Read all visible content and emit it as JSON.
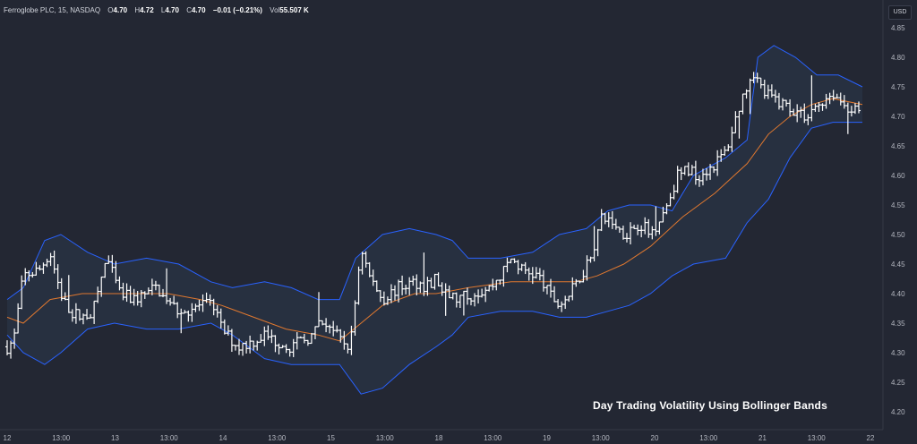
{
  "legend": {
    "symbol": "Ferroglobe PLC, 15, NASDAQ",
    "open_label": "O",
    "open": "4.70",
    "high_label": "H",
    "high": "4.72",
    "low_label": "L",
    "low": "4.70",
    "close_label": "C",
    "close": "4.70",
    "change": "−0.01 (−0.21%)",
    "vol_label": "Vol",
    "vol": "55.507 K"
  },
  "currency_badge": "USD",
  "caption": "Day Trading Volatility Using Bollinger Bands",
  "colors": {
    "background": "#232733",
    "candles": "#ffffff",
    "band_lines": "#2962ff",
    "band_fill": "#2a3446",
    "basis_line": "#e0782f",
    "axis_text": "#b2b5be"
  },
  "chart_data": {
    "type": "ohlc",
    "indicator": "Bollinger Bands",
    "ylim": [
      4.18,
      4.88
    ],
    "y_ticks": [
      "4.85",
      "4.80",
      "4.75",
      "4.70",
      "4.65",
      "4.60",
      "4.55",
      "4.50",
      "4.45",
      "4.40",
      "4.35",
      "4.30",
      "4.25",
      "4.20"
    ],
    "x_ticks": [
      "12",
      "13:00",
      "13",
      "13:00",
      "14",
      "13:00",
      "15",
      "13:00",
      "18",
      "13:00",
      "19",
      "13:00",
      "20",
      "13:00",
      "21",
      "13:00",
      "22"
    ],
    "x_domain": [
      0,
      16.2
    ],
    "price_keys": [
      [
        0.0,
        4.31
      ],
      [
        0.12,
        4.32
      ],
      [
        0.3,
        4.43
      ],
      [
        0.6,
        4.44
      ],
      [
        0.8,
        4.47
      ],
      [
        1.0,
        4.4
      ],
      [
        1.15,
        4.37
      ],
      [
        1.4,
        4.36
      ],
      [
        1.6,
        4.37
      ],
      [
        1.85,
        4.46
      ],
      [
        2.1,
        4.4
      ],
      [
        2.35,
        4.39
      ],
      [
        2.6,
        4.4
      ],
      [
        2.8,
        4.41
      ],
      [
        3.0,
        4.38
      ],
      [
        3.3,
        4.37
      ],
      [
        3.6,
        4.38
      ],
      [
        3.85,
        4.38
      ],
      [
        4.0,
        4.34
      ],
      [
        4.3,
        4.31
      ],
      [
        4.6,
        4.32
      ],
      [
        4.8,
        4.33
      ],
      [
        5.0,
        4.32
      ],
      [
        5.3,
        4.31
      ],
      [
        5.5,
        4.32
      ],
      [
        5.7,
        4.33
      ],
      [
        5.85,
        4.35
      ],
      [
        6.0,
        4.35
      ],
      [
        6.2,
        4.32
      ],
      [
        6.4,
        4.31
      ],
      [
        6.6,
        4.48
      ],
      [
        6.75,
        4.43
      ],
      [
        7.0,
        4.39
      ],
      [
        7.3,
        4.41
      ],
      [
        7.6,
        4.42
      ],
      [
        7.9,
        4.41
      ],
      [
        8.0,
        4.43
      ],
      [
        8.1,
        4.4
      ],
      [
        8.4,
        4.39
      ],
      [
        8.7,
        4.4
      ],
      [
        9.0,
        4.41
      ],
      [
        9.2,
        4.43
      ],
      [
        9.4,
        4.46
      ],
      [
        9.6,
        4.44
      ],
      [
        9.9,
        4.43
      ],
      [
        10.1,
        4.4
      ],
      [
        10.3,
        4.38
      ],
      [
        10.5,
        4.4
      ],
      [
        10.7,
        4.43
      ],
      [
        10.9,
        4.47
      ],
      [
        11.1,
        4.53
      ],
      [
        11.3,
        4.52
      ],
      [
        11.5,
        4.5
      ],
      [
        11.8,
        4.52
      ],
      [
        12.0,
        4.5
      ],
      [
        12.3,
        4.55
      ],
      [
        12.5,
        4.6
      ],
      [
        12.7,
        4.61
      ],
      [
        12.9,
        4.6
      ],
      [
        13.2,
        4.62
      ],
      [
        13.4,
        4.64
      ],
      [
        13.7,
        4.73
      ],
      [
        13.9,
        4.78
      ],
      [
        14.1,
        4.74
      ],
      [
        14.3,
        4.73
      ],
      [
        14.5,
        4.72
      ],
      [
        14.7,
        4.71
      ],
      [
        14.9,
        4.7
      ],
      [
        15.1,
        4.72
      ],
      [
        15.4,
        4.74
      ],
      [
        15.6,
        4.72
      ],
      [
        15.8,
        4.71
      ],
      [
        15.95,
        4.7
      ]
    ],
    "bollinger": {
      "basis": [
        [
          0.0,
          4.36
        ],
        [
          0.3,
          4.35
        ],
        [
          0.8,
          4.39
        ],
        [
          1.4,
          4.4
        ],
        [
          2.0,
          4.4
        ],
        [
          2.6,
          4.4
        ],
        [
          3.0,
          4.4
        ],
        [
          3.6,
          4.39
        ],
        [
          4.0,
          4.38
        ],
        [
          4.6,
          4.36
        ],
        [
          5.2,
          4.34
        ],
        [
          5.8,
          4.33
        ],
        [
          6.2,
          4.32
        ],
        [
          6.6,
          4.35
        ],
        [
          7.0,
          4.38
        ],
        [
          7.6,
          4.4
        ],
        [
          8.0,
          4.4
        ],
        [
          8.6,
          4.41
        ],
        [
          9.4,
          4.42
        ],
        [
          10.0,
          4.42
        ],
        [
          10.6,
          4.42
        ],
        [
          11.0,
          4.43
        ],
        [
          11.5,
          4.45
        ],
        [
          12.0,
          4.48
        ],
        [
          12.6,
          4.53
        ],
        [
          13.2,
          4.57
        ],
        [
          13.8,
          4.62
        ],
        [
          14.2,
          4.67
        ],
        [
          14.6,
          4.7
        ],
        [
          15.0,
          4.72
        ],
        [
          15.4,
          4.73
        ],
        [
          15.95,
          4.72
        ]
      ],
      "upper": [
        [
          0.0,
          4.39
        ],
        [
          0.3,
          4.41
        ],
        [
          0.7,
          4.49
        ],
        [
          1.0,
          4.5
        ],
        [
          1.5,
          4.47
        ],
        [
          2.0,
          4.45
        ],
        [
          2.6,
          4.46
        ],
        [
          3.2,
          4.45
        ],
        [
          3.8,
          4.42
        ],
        [
          4.2,
          4.41
        ],
        [
          4.8,
          4.42
        ],
        [
          5.3,
          4.41
        ],
        [
          5.8,
          4.39
        ],
        [
          6.2,
          4.39
        ],
        [
          6.5,
          4.46
        ],
        [
          7.0,
          4.5
        ],
        [
          7.5,
          4.51
        ],
        [
          8.0,
          4.5
        ],
        [
          8.3,
          4.49
        ],
        [
          8.6,
          4.46
        ],
        [
          9.2,
          4.46
        ],
        [
          9.8,
          4.47
        ],
        [
          10.3,
          4.5
        ],
        [
          10.8,
          4.51
        ],
        [
          11.2,
          4.54
        ],
        [
          11.6,
          4.55
        ],
        [
          12.0,
          4.55
        ],
        [
          12.4,
          4.54
        ],
        [
          12.8,
          4.6
        ],
        [
          13.4,
          4.63
        ],
        [
          13.8,
          4.66
        ],
        [
          14.0,
          4.8
        ],
        [
          14.3,
          4.82
        ],
        [
          14.7,
          4.8
        ],
        [
          15.1,
          4.77
        ],
        [
          15.5,
          4.77
        ],
        [
          15.95,
          4.75
        ]
      ],
      "lower": [
        [
          0.0,
          4.33
        ],
        [
          0.3,
          4.3
        ],
        [
          0.7,
          4.28
        ],
        [
          1.0,
          4.3
        ],
        [
          1.5,
          4.34
        ],
        [
          2.0,
          4.35
        ],
        [
          2.6,
          4.34
        ],
        [
          3.2,
          4.34
        ],
        [
          3.8,
          4.35
        ],
        [
          4.2,
          4.33
        ],
        [
          4.8,
          4.29
        ],
        [
          5.3,
          4.28
        ],
        [
          5.8,
          4.28
        ],
        [
          6.2,
          4.28
        ],
        [
          6.6,
          4.23
        ],
        [
          7.0,
          4.24
        ],
        [
          7.5,
          4.28
        ],
        [
          8.0,
          4.31
        ],
        [
          8.3,
          4.33
        ],
        [
          8.6,
          4.36
        ],
        [
          9.2,
          4.37
        ],
        [
          9.8,
          4.37
        ],
        [
          10.3,
          4.36
        ],
        [
          10.8,
          4.36
        ],
        [
          11.2,
          4.37
        ],
        [
          11.6,
          4.38
        ],
        [
          12.0,
          4.4
        ],
        [
          12.4,
          4.43
        ],
        [
          12.8,
          4.45
        ],
        [
          13.4,
          4.46
        ],
        [
          13.8,
          4.52
        ],
        [
          14.2,
          4.56
        ],
        [
          14.6,
          4.63
        ],
        [
          15.0,
          4.68
        ],
        [
          15.4,
          4.69
        ],
        [
          15.95,
          4.69
        ]
      ]
    }
  }
}
